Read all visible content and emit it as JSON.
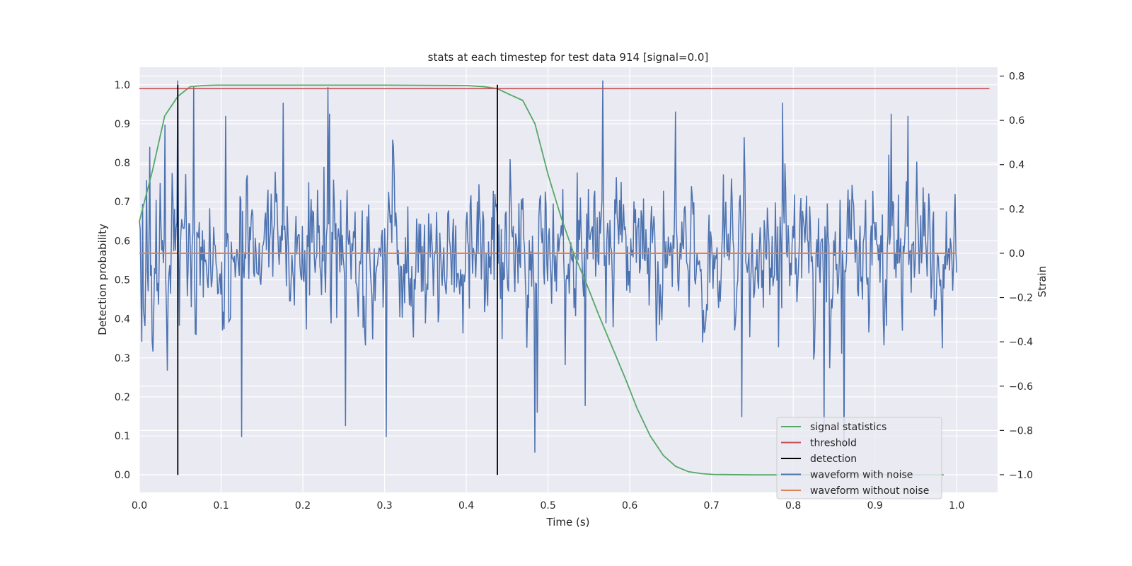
{
  "chart_data": {
    "type": "line",
    "title": "stats at each timestep for test data 914 [signal=0.0]",
    "xlabel": "Time (s)",
    "ylabel": "Detection probability",
    "y2label": "Strain",
    "xlim": [
      0.0,
      1.05
    ],
    "ylim": [
      -0.045,
      1.045
    ],
    "y2lim": [
      -1.08,
      0.84
    ],
    "xticks": [
      0.0,
      0.1,
      0.2,
      0.3,
      0.4,
      0.5,
      0.6,
      0.7,
      0.8,
      0.9,
      1.0
    ],
    "xtick_labels": [
      "0.0",
      "0.1",
      "0.2",
      "0.3",
      "0.4",
      "0.5",
      "0.6",
      "0.7",
      "0.8",
      "0.9",
      "1.0"
    ],
    "yticks": [
      0.0,
      0.1,
      0.2,
      0.3,
      0.4,
      0.5,
      0.6,
      0.7,
      0.8,
      0.9,
      1.0
    ],
    "ytick_labels": [
      "0.0",
      "0.1",
      "0.2",
      "0.3",
      "0.4",
      "0.5",
      "0.6",
      "0.7",
      "0.8",
      "0.9",
      "1.0"
    ],
    "y2ticks": [
      -1.0,
      -0.8,
      -0.6,
      -0.4,
      -0.2,
      0.0,
      0.2,
      0.4,
      0.6,
      0.8
    ],
    "y2tick_labels": [
      "−1.0",
      "−0.8",
      "−0.6",
      "−0.4",
      "−0.2",
      "0.0",
      "0.2",
      "0.4",
      "0.6",
      "0.8"
    ],
    "grid": true,
    "legend_position": "lower-right",
    "colors": {
      "background": "#eaeaf2",
      "grid": "#ffffff",
      "signal_statistics": "#55a868",
      "threshold": "#c44e52",
      "detection": "#000000",
      "waveform_with_noise": "#4c72b0",
      "waveform_without_noise": "#dd8452"
    },
    "series": [
      {
        "name": "signal statistics",
        "axis": "left",
        "x": [
          0.0,
          0.016,
          0.031,
          0.047,
          0.062,
          0.078,
          0.094,
          0.109,
          0.125,
          0.2,
          0.3,
          0.4,
          0.422,
          0.438,
          0.453,
          0.469,
          0.484,
          0.5,
          0.516,
          0.531,
          0.547,
          0.562,
          0.578,
          0.594,
          0.609,
          0.625,
          0.641,
          0.656,
          0.672,
          0.688,
          0.703,
          0.75,
          0.8,
          0.9,
          0.984
        ],
        "y": [
          0.65,
          0.78,
          0.92,
          0.97,
          0.995,
          0.998,
          0.999,
          0.999,
          0.999,
          0.999,
          0.999,
          0.998,
          0.995,
          0.99,
          0.975,
          0.96,
          0.9,
          0.77,
          0.66,
          0.57,
          0.49,
          0.41,
          0.33,
          0.25,
          0.17,
          0.1,
          0.05,
          0.022,
          0.008,
          0.003,
          0.001,
          0.0,
          0.0,
          0.0,
          0.0
        ]
      },
      {
        "name": "threshold",
        "axis": "left",
        "x": [
          0.0,
          1.04
        ],
        "y": [
          0.99,
          0.99
        ]
      },
      {
        "name": "detection",
        "axis": "left",
        "x_positions": [
          0.047,
          0.438
        ],
        "y_range": [
          0.0,
          1.0
        ]
      },
      {
        "name": "waveform with noise",
        "axis": "right",
        "x_range": [
          0.0,
          1.0
        ],
        "n_points": 1024,
        "peak_samples": [
          [
            0.0,
            0.15
          ],
          [
            0.003,
            -0.4
          ],
          [
            0.009,
            0.33
          ],
          [
            0.013,
            0.48
          ],
          [
            0.016,
            -0.4
          ],
          [
            0.031,
            0.58
          ],
          [
            0.034,
            -0.53
          ],
          [
            0.047,
            0.78
          ],
          [
            0.066,
            0.75
          ],
          [
            0.106,
            0.62
          ],
          [
            0.125,
            -0.83
          ],
          [
            0.176,
            0.68
          ],
          [
            0.231,
            0.75
          ],
          [
            0.233,
            0.63
          ],
          [
            0.252,
            -0.78
          ],
          [
            0.302,
            -0.83
          ],
          [
            0.484,
            -0.9
          ],
          [
            0.487,
            -0.72
          ],
          [
            0.545,
            -0.69
          ],
          [
            0.567,
            0.78
          ],
          [
            0.656,
            0.64
          ],
          [
            0.737,
            -0.74
          ],
          [
            0.787,
            0.68
          ],
          [
            0.838,
            -0.78
          ],
          [
            0.862,
            -0.88
          ],
          [
            0.92,
            0.63
          ],
          [
            0.94,
            0.62
          ]
        ],
        "amplitude_std": 0.27
      },
      {
        "name": "waveform without noise",
        "axis": "right",
        "x": [
          0.0,
          1.0
        ],
        "y": [
          0.0,
          0.0
        ]
      }
    ]
  }
}
